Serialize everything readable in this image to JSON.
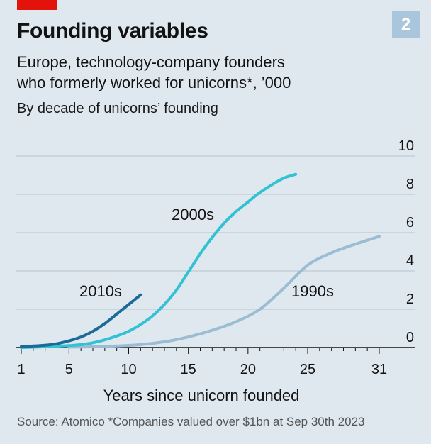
{
  "header": {
    "badge": "2",
    "title": "Founding variables",
    "subtitle_line1": "Europe, technology-company founders",
    "subtitle_line2": "who formerly worked for unicorns*, ’000",
    "subnote": "By decade of unicorns’ founding"
  },
  "footer": {
    "source": "Source: Atomico   *Companies valued over $1bn at Sep 30th 2023"
  },
  "colors": {
    "background": "#dfe8ef",
    "accent_red": "#e3120b",
    "badge": "#a9c6dc",
    "series_2010s": "#1b6a97",
    "series_2000s": "#34c1d3",
    "series_1990s": "#9bbdd4",
    "gridline": "#b6c3cc",
    "axis": "#121212"
  },
  "chart_data": {
    "type": "line",
    "title": "Founding variables",
    "subtitle": "Europe, technology-company founders who formerly worked for unicorns*, ’000",
    "xlabel": "Years since unicorn founded",
    "ylabel": "",
    "xlim": [
      1,
      31
    ],
    "ylim": [
      0,
      10
    ],
    "x_ticks": [
      1,
      5,
      10,
      15,
      20,
      25,
      31
    ],
    "y_ticks": [
      0,
      2,
      4,
      6,
      8,
      10
    ],
    "grid": true,
    "legend": "inline labels",
    "series": [
      {
        "name": "2010s",
        "color": "#1b6a97",
        "x": [
          1,
          2,
          3,
          4,
          5,
          6,
          7,
          8,
          9,
          10,
          11
        ],
        "y": [
          0.05,
          0.08,
          0.12,
          0.2,
          0.35,
          0.55,
          0.85,
          1.25,
          1.75,
          2.25,
          2.75
        ]
      },
      {
        "name": "2000s",
        "color": "#34c1d3",
        "x": [
          1,
          2,
          3,
          4,
          5,
          6,
          7,
          8,
          9,
          10,
          11,
          12,
          13,
          14,
          15,
          16,
          17,
          18,
          19,
          20,
          21,
          22,
          23,
          24
        ],
        "y": [
          0.0,
          0.02,
          0.04,
          0.07,
          0.1,
          0.15,
          0.25,
          0.4,
          0.6,
          0.85,
          1.2,
          1.65,
          2.25,
          3.0,
          3.95,
          4.9,
          5.75,
          6.5,
          7.1,
          7.6,
          8.1,
          8.5,
          8.85,
          9.05
        ]
      },
      {
        "name": "1990s",
        "color": "#9bbdd4",
        "x": [
          5,
          7,
          9,
          11,
          13,
          15,
          17,
          19,
          21,
          23,
          25,
          27,
          29,
          31
        ],
        "y": [
          0.02,
          0.04,
          0.08,
          0.15,
          0.3,
          0.55,
          0.9,
          1.35,
          2.0,
          3.1,
          4.3,
          4.95,
          5.4,
          5.8
        ]
      }
    ]
  }
}
